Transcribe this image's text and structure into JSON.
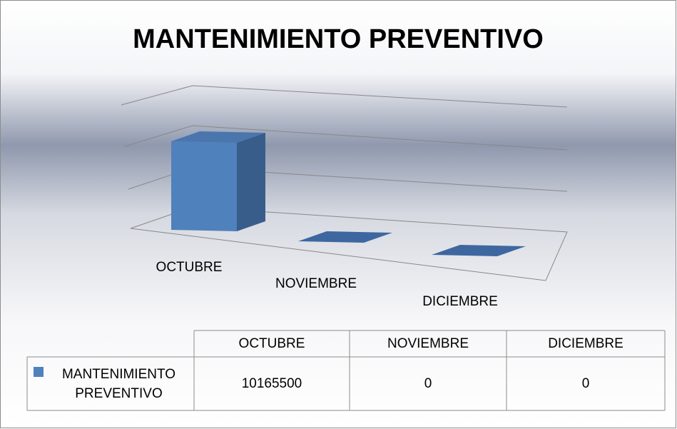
{
  "chart_data": {
    "type": "bar",
    "title": "MANTENIMIENTO PREVENTIVO",
    "categories": [
      "OCTUBRE",
      "NOVIEMBRE",
      "DICIEMBRE"
    ],
    "series": [
      {
        "name": "MANTENIMIENTO PREVENTIVO",
        "color": "#4f81bd",
        "values": [
          10165500,
          0,
          0
        ]
      }
    ],
    "legend": "table"
  }
}
